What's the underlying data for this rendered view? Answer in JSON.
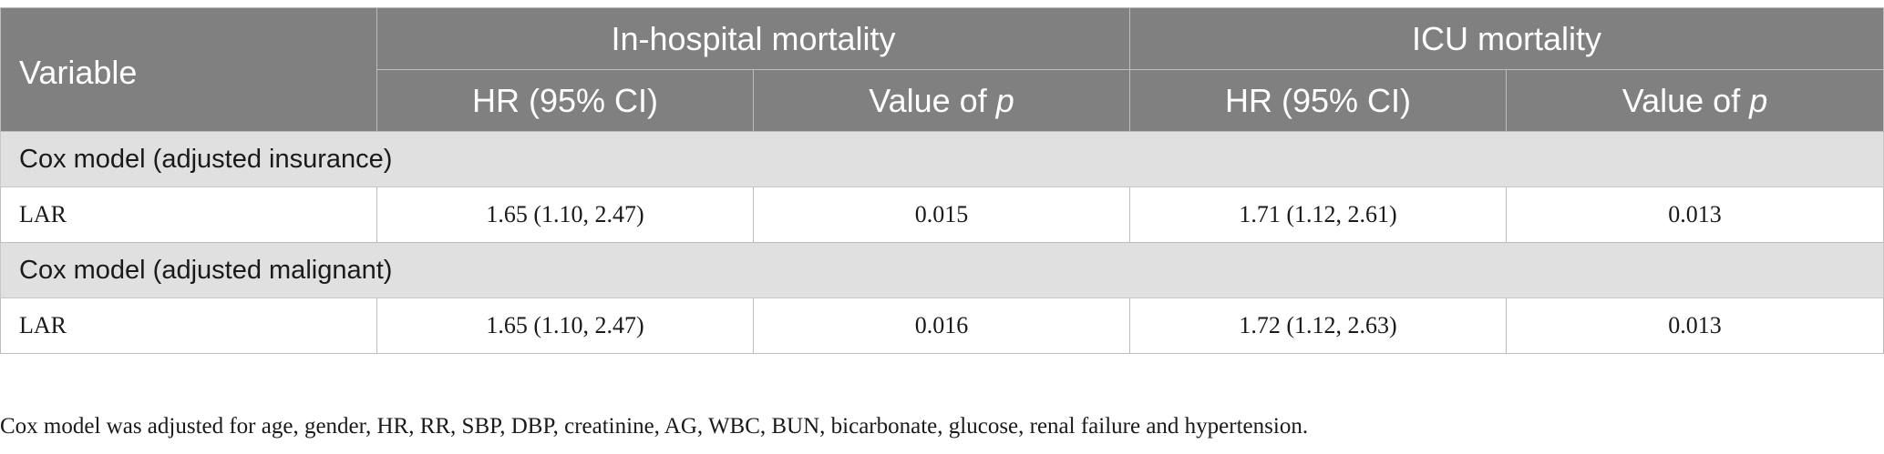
{
  "table": {
    "header": {
      "variable": "Variable",
      "group_in_hospital": "In-hospital mortality",
      "group_icu": "ICU mortality",
      "hr_label": "HR (95% CI)",
      "p_prefix": "Value of ",
      "p_symbol": "p"
    },
    "sections": [
      {
        "title": "Cox model (adjusted insurance)",
        "rows": [
          {
            "label": "LAR",
            "inhosp_hr": "1.65 (1.10, 2.47)",
            "inhosp_p": "0.015",
            "icu_hr": "1.71 (1.12, 2.61)",
            "icu_p": "0.013"
          }
        ]
      },
      {
        "title": "Cox model (adjusted malignant)",
        "rows": [
          {
            "label": "LAR",
            "inhosp_hr": "1.65 (1.10, 2.47)",
            "inhosp_p": "0.016",
            "icu_hr": "1.72 (1.12, 2.63)",
            "icu_p": "0.013"
          }
        ]
      }
    ]
  },
  "footnote": "Cox model was adjusted for age, gender, HR, RR, SBP, DBP, creatinine, AG, WBC, BUN, bicarbonate, glucose, renal failure and hypertension."
}
